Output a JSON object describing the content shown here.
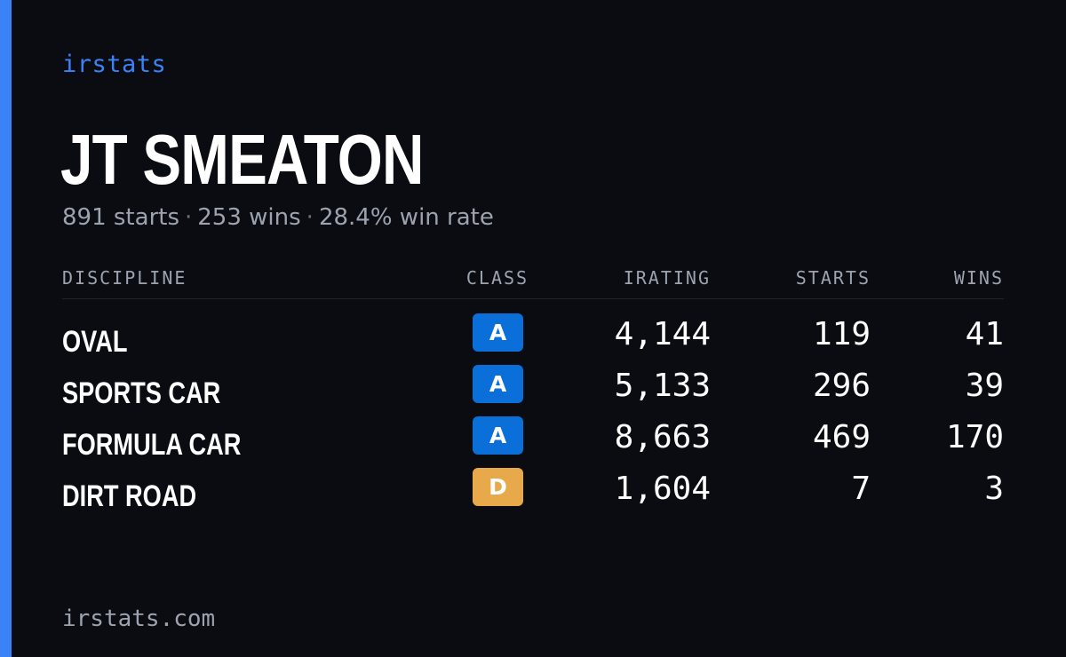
{
  "brand": "irstats",
  "driver": {
    "name": "JT SMEATON",
    "summary": {
      "starts": "891 starts",
      "wins": "253 wins",
      "win_rate": "28.4% win rate",
      "separator": "·"
    }
  },
  "table": {
    "headers": {
      "discipline": "DISCIPLINE",
      "class": "CLASS",
      "irating": "IRATING",
      "starts": "STARTS",
      "wins": "WINS"
    },
    "rows": [
      {
        "discipline": "OVAL",
        "class": "A",
        "class_color": "#0a6fd8",
        "irating": "4,144",
        "starts": "119",
        "wins": "41"
      },
      {
        "discipline": "SPORTS CAR",
        "class": "A",
        "class_color": "#0a6fd8",
        "irating": "5,133",
        "starts": "296",
        "wins": "39"
      },
      {
        "discipline": "FORMULA CAR",
        "class": "A",
        "class_color": "#0a6fd8",
        "irating": "8,663",
        "starts": "469",
        "wins": "170"
      },
      {
        "discipline": "DIRT ROAD",
        "class": "D",
        "class_color": "#e8a94a",
        "irating": "1,604",
        "starts": "7",
        "wins": "3"
      }
    ]
  },
  "footer": {
    "url": "irstats.com"
  },
  "colors": {
    "background": "#0a0c12",
    "accent": "#3b82f6",
    "muted_text": "#9ca3af"
  }
}
